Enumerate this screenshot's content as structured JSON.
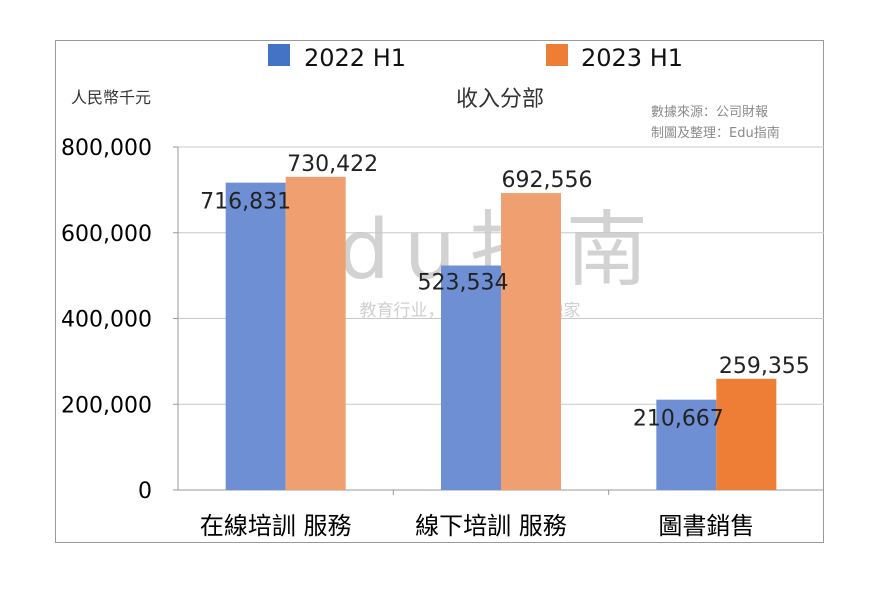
{
  "chart_data": {
    "type": "bar",
    "title": "收入分部",
    "unit_label": "人民幣千元",
    "source_lines": [
      "數據來源：公司財報",
      "制圖及整理：Edu指南"
    ],
    "categories": [
      "在線培訓 服務",
      "線下培訓 服務",
      "圖書銷售"
    ],
    "series": [
      {
        "name": "2022 H1",
        "values": [
          716831,
          523534,
          210667
        ],
        "color": "#6f8fd4"
      },
      {
        "name": "2023 H1",
        "values": [
          730422,
          692556,
          259355
        ],
        "color": "#f0a070"
      }
    ],
    "data_labels": [
      [
        "716,831",
        "523,534",
        "210,667"
      ],
      [
        "730,422",
        "692,556",
        "259,355"
      ]
    ],
    "yticks": [
      "0",
      "200,000",
      "400,000",
      "600,000",
      "800,000"
    ],
    "ylim": [
      0,
      800000
    ],
    "grid": true,
    "legend_position": "top-center",
    "highlight_color": "#ee7e35",
    "watermark": {
      "logo": "Edu指南",
      "slogan": "教育行业，前沿、深度、独家"
    }
  }
}
